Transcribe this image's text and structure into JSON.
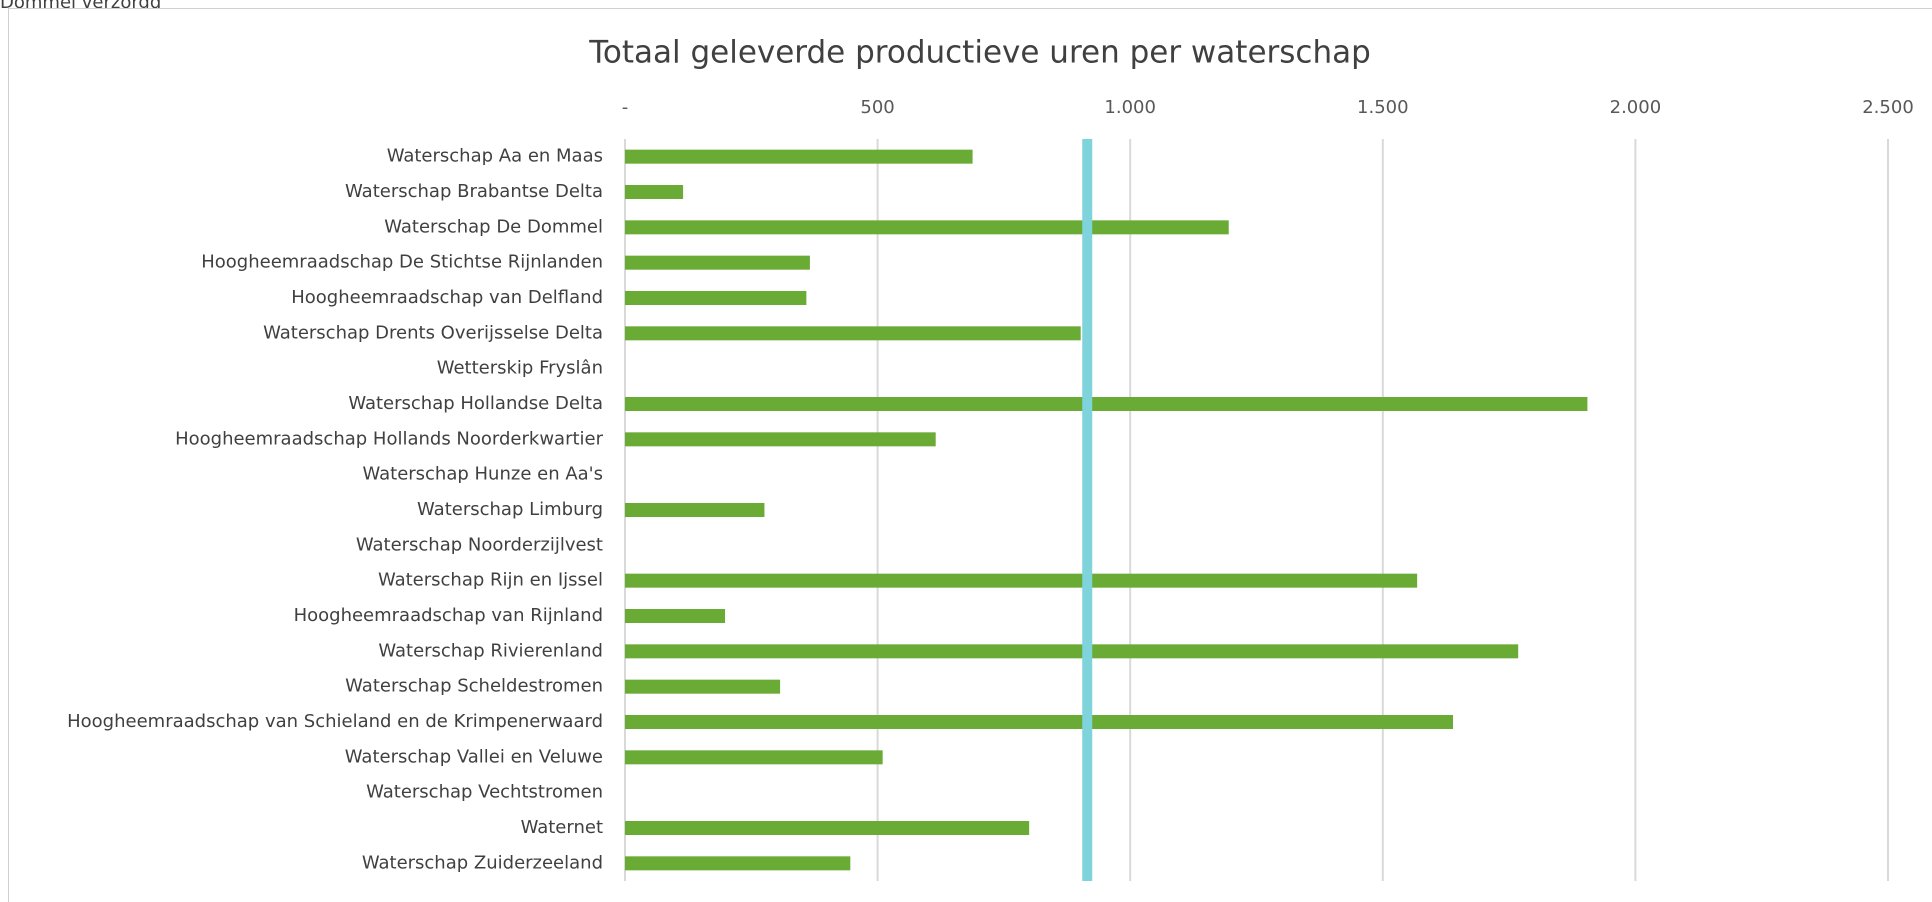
{
  "header_text": "Dommel verzorgd",
  "chart_data": {
    "type": "barh",
    "title": "Totaal geleverde productieve uren per waterschap",
    "categories": [
      "Waterschap Aa en Maas",
      "Waterschap Brabantse Delta",
      "Waterschap De Dommel",
      "Hoogheemraadschap De Stichtse Rijnlanden",
      "Hoogheemraadschap van Delfland",
      "Waterschap Drents Overijsselse Delta",
      "Wetterskip Fryslân",
      "Waterschap Hollandse Delta",
      "Hoogheemraadschap Hollands Noorderkwartier",
      "Waterschap Hunze en Aa's",
      "Waterschap Limburg",
      "Waterschap Noorderzijlvest",
      "Waterschap Rijn en Ijssel",
      "Hoogheemraadschap van Rijnland",
      "Waterschap Rivierenland",
      "Waterschap Scheldestromen",
      "Hoogheemraadschap van Schieland en de Krimpenerwaard",
      "Waterschap Vallei en Veluwe",
      "Waterschap Vechtstromen",
      "Waternet",
      "Waterschap Zuiderzeeland"
    ],
    "values": [
      688,
      115,
      1195,
      366,
      359,
      902,
      0,
      1905,
      615,
      0,
      276,
      0,
      1568,
      198,
      1768,
      307,
      1639,
      510,
      0,
      800,
      446
    ],
    "color": "#6aab35",
    "reference_line": {
      "value": 915,
      "color": "#7fd3db"
    },
    "xlim": [
      0,
      2500
    ],
    "xticks": [
      {
        "value": 0,
        "label": "-"
      },
      500,
      {
        "value": 1000,
        "label": "1.000"
      },
      {
        "value": 1500,
        "label": "1.500"
      },
      {
        "value": 2000,
        "label": "2.000"
      },
      {
        "value": 2500,
        "label": "2.500"
      }
    ],
    "grid": true
  }
}
